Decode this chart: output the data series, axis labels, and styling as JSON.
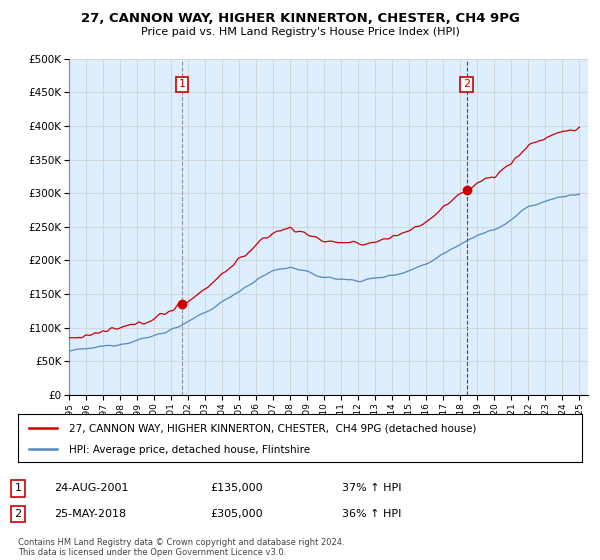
{
  "title": "27, CANNON WAY, HIGHER KINNERTON, CHESTER, CH4 9PG",
  "subtitle": "Price paid vs. HM Land Registry's House Price Index (HPI)",
  "legend_line1": "27, CANNON WAY, HIGHER KINNERTON, CHESTER,  CH4 9PG (detached house)",
  "legend_line2": "HPI: Average price, detached house, Flintshire",
  "annotation1_date": "24-AUG-2001",
  "annotation1_price": "£135,000",
  "annotation1_hpi": "37% ↑ HPI",
  "annotation2_date": "25-MAY-2018",
  "annotation2_price": "£305,000",
  "annotation2_hpi": "36% ↑ HPI",
  "footer": "Contains HM Land Registry data © Crown copyright and database right 2024.\nThis data is licensed under the Open Government Licence v3.0.",
  "sale1_x": 2001.65,
  "sale1_y": 135000,
  "sale2_x": 2018.37,
  "sale2_y": 305000,
  "red_color": "#cc0000",
  "blue_color": "#5588bb",
  "grid_color": "#cccccc",
  "plot_bg_color": "#ddeeff",
  "background_color": "#ffffff",
  "ylim": [
    0,
    500000
  ],
  "xlim": [
    1995,
    2025.5
  ],
  "yticks": [
    0,
    50000,
    100000,
    150000,
    200000,
    250000,
    300000,
    350000,
    400000,
    450000,
    500000
  ],
  "xticks": [
    1995,
    1996,
    1997,
    1998,
    1999,
    2000,
    2001,
    2002,
    2003,
    2004,
    2005,
    2006,
    2007,
    2008,
    2009,
    2010,
    2011,
    2012,
    2013,
    2014,
    2015,
    2016,
    2017,
    2018,
    2019,
    2020,
    2021,
    2022,
    2023,
    2024,
    2025
  ],
  "hpi_base_years": [
    1995,
    1996,
    1997,
    1998,
    1999,
    2000,
    2001,
    2002,
    2003,
    2004,
    2005,
    2006,
    2007,
    2008,
    2009,
    2010,
    2011,
    2012,
    2013,
    2014,
    2015,
    2016,
    2017,
    2018,
    2019,
    2020,
    2021,
    2022,
    2023,
    2024,
    2025
  ],
  "hpi_base_vals": [
    65000,
    68000,
    72000,
    76000,
    81000,
    88000,
    97000,
    108000,
    122000,
    138000,
    155000,
    170000,
    185000,
    190000,
    182000,
    175000,
    172000,
    170000,
    173000,
    178000,
    185000,
    195000,
    210000,
    225000,
    238000,
    245000,
    260000,
    280000,
    288000,
    295000,
    298000
  ]
}
